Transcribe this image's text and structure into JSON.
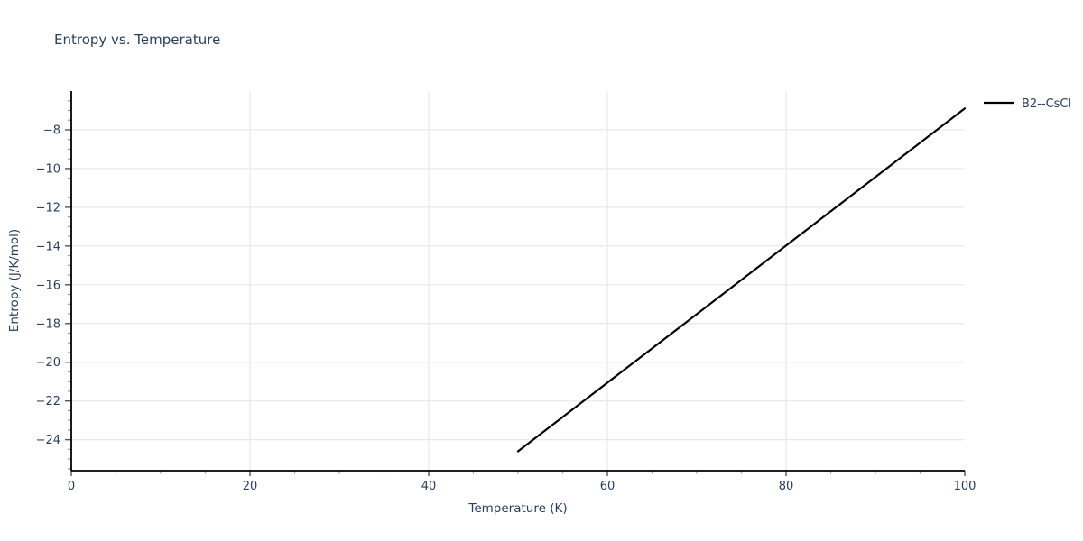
{
  "page": {
    "background": "#ffffff"
  },
  "chart_data": {
    "type": "line",
    "title": "Entropy vs. Temperature",
    "xlabel": "Temperature (K)",
    "ylabel": "Entropy (J/K/mol)",
    "xlim": [
      0,
      100
    ],
    "ylim": [
      -25.6,
      -6.0
    ],
    "x_major_ticks": [
      0,
      20,
      40,
      60,
      80,
      100
    ],
    "x_tick_labels": [
      "0",
      "20",
      "40",
      "60",
      "80",
      "100"
    ],
    "x_minor_step": 5,
    "y_major_ticks": [
      -8,
      -10,
      -12,
      -14,
      -16,
      -18,
      -20,
      -22,
      -24
    ],
    "y_tick_labels": [
      "−8",
      "−10",
      "−12",
      "−14",
      "−16",
      "−18",
      "−20",
      "−22",
      "−24"
    ],
    "y_minor_step": 0.5,
    "grid": true,
    "legend_position": "top-right-outside",
    "series": [
      {
        "name": "B2--CsCl",
        "color": "#000000",
        "x": [
          50,
          100
        ],
        "y": [
          -24.6,
          -6.9
        ]
      }
    ]
  },
  "colors": {
    "text": "#2a3f5f",
    "grid": "#e8e8e8",
    "spine": "#000000",
    "major_tick": "#555555",
    "minor_tick": "#999999",
    "series_line": "#000000"
  }
}
